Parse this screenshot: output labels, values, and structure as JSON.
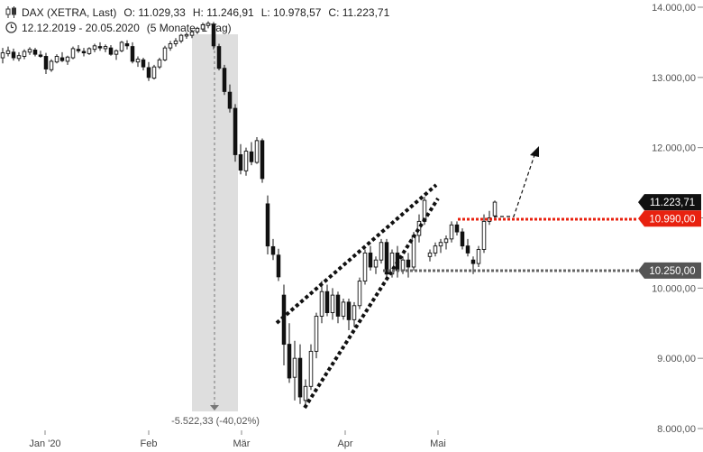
{
  "header": {
    "title": "DAX (XETRA, Last)",
    "open": "O: 11.029,33",
    "high": "H: 11.246,91",
    "low": "L: 10.978,57",
    "close": "C: 11.223,71",
    "range": "12.12.2019 - 20.05.2020",
    "period": "(5 Monate, 1 Tag)"
  },
  "chart_data": {
    "type": "candlestick",
    "y_axis_ticks": [
      "14.000,00",
      "13.000,00",
      "12.000,00",
      "11.000,00",
      "10.000,00",
      "9.000,00",
      "8.000,00"
    ],
    "x_axis_ticks": [
      "Jan '20",
      "Feb",
      "Mär",
      "Apr",
      "Mai"
    ],
    "ylim": [
      8000,
      14000
    ],
    "price_labels": [
      {
        "label": "11.223,71",
        "value": 11223.71,
        "color": "#111111"
      },
      {
        "label": "10.990,00",
        "value": 10990,
        "color": "#e8210f"
      },
      {
        "label": "10.250,00",
        "value": 10250,
        "color": "#555555"
      }
    ],
    "drawdown_annotation": "-5.522,33 (-40,02%)",
    "candles": [
      [
        13280,
        13420,
        13200,
        13350
      ],
      [
        13340,
        13440,
        13300,
        13380
      ],
      [
        13360,
        13410,
        13240,
        13280
      ],
      [
        13270,
        13360,
        13230,
        13310
      ],
      [
        13300,
        13400,
        13260,
        13370
      ],
      [
        13360,
        13430,
        13320,
        13400
      ],
      [
        13390,
        13420,
        13300,
        13330
      ],
      [
        13320,
        13380,
        13280,
        13300
      ],
      [
        13300,
        13350,
        13050,
        13120
      ],
      [
        13110,
        13260,
        13080,
        13230
      ],
      [
        13220,
        13330,
        13200,
        13300
      ],
      [
        13280,
        13360,
        13220,
        13240
      ],
      [
        13230,
        13310,
        13180,
        13290
      ],
      [
        13280,
        13440,
        13260,
        13410
      ],
      [
        13400,
        13460,
        13350,
        13380
      ],
      [
        13370,
        13420,
        13300,
        13350
      ],
      [
        13340,
        13430,
        13320,
        13410
      ],
      [
        13400,
        13480,
        13360,
        13450
      ],
      [
        13440,
        13500,
        13380,
        13420
      ],
      [
        13410,
        13470,
        13360,
        13440
      ],
      [
        13420,
        13460,
        13310,
        13330
      ],
      [
        13330,
        13400,
        13250,
        13380
      ],
      [
        13380,
        13520,
        13360,
        13500
      ],
      [
        13480,
        13530,
        13400,
        13450
      ],
      [
        13440,
        13500,
        13200,
        13230
      ],
      [
        13220,
        13300,
        13150,
        13260
      ],
      [
        13250,
        13280,
        13100,
        13150
      ],
      [
        13140,
        13220,
        12950,
        13000
      ],
      [
        12990,
        13180,
        12970,
        13150
      ],
      [
        13150,
        13280,
        13120,
        13250
      ],
      [
        13250,
        13450,
        13230,
        13420
      ],
      [
        13420,
        13520,
        13380,
        13480
      ],
      [
        13480,
        13560,
        13440,
        13520
      ],
      [
        13520,
        13620,
        13490,
        13600
      ],
      [
        13590,
        13640,
        13550,
        13610
      ],
      [
        13600,
        13680,
        13560,
        13650
      ],
      [
        13650,
        13720,
        13620,
        13700
      ],
      [
        13690,
        13780,
        13660,
        13750
      ],
      [
        13740,
        13800,
        13700,
        13770
      ],
      [
        13760,
        13790,
        13400,
        13450
      ],
      [
        13440,
        13480,
        13100,
        13130
      ],
      [
        13130,
        13180,
        12750,
        12800
      ],
      [
        12790,
        12900,
        12500,
        12560
      ],
      [
        12560,
        12620,
        11800,
        11900
      ],
      [
        11900,
        12050,
        11620,
        11680
      ],
      [
        11670,
        12000,
        11600,
        11950
      ],
      [
        11940,
        12080,
        11750,
        11800
      ],
      [
        11790,
        12150,
        11770,
        12100
      ],
      [
        12100,
        12130,
        11500,
        11560
      ],
      [
        11200,
        11320,
        10480,
        10600
      ],
      [
        10590,
        10700,
        10400,
        10480
      ],
      [
        10470,
        10560,
        10100,
        10160
      ],
      [
        9900,
        10050,
        8900,
        9200
      ],
      [
        9200,
        9500,
        8650,
        8720
      ],
      [
        8730,
        9250,
        8400,
        9000
      ],
      [
        9000,
        9200,
        8350,
        8450
      ],
      [
        8400,
        8700,
        8300,
        8600
      ],
      [
        8600,
        9200,
        8550,
        9100
      ],
      [
        9100,
        9650,
        9000,
        9600
      ],
      [
        9600,
        10100,
        9500,
        9950
      ],
      [
        9950,
        10050,
        9600,
        9650
      ],
      [
        9650,
        10000,
        9550,
        9900
      ],
      [
        9900,
        9950,
        9500,
        9600
      ],
      [
        9600,
        9850,
        9550,
        9800
      ],
      [
        9800,
        9850,
        9400,
        9550
      ],
      [
        9550,
        9800,
        9450,
        9750
      ],
      [
        9750,
        10150,
        9700,
        10100
      ],
      [
        10100,
        10550,
        10050,
        10500
      ],
      [
        10500,
        10600,
        10250,
        10300
      ],
      [
        10300,
        10450,
        10200,
        10400
      ],
      [
        10400,
        10700,
        10350,
        10650
      ],
      [
        10650,
        10700,
        10150,
        10200
      ],
      [
        10200,
        10550,
        10150,
        10500
      ],
      [
        10500,
        10600,
        10150,
        10250
      ],
      [
        10250,
        10450,
        10200,
        10400
      ],
      [
        10400,
        10500,
        10150,
        10300
      ],
      [
        10300,
        10800,
        10250,
        10750
      ],
      [
        10750,
        11050,
        10650,
        10950
      ],
      [
        10950,
        11300,
        10900,
        11250
      ],
      [
        10450,
        10550,
        10380,
        10500
      ],
      [
        10500,
        10650,
        10450,
        10600
      ],
      [
        10600,
        10700,
        10500,
        10650
      ],
      [
        10650,
        10750,
        10550,
        10700
      ],
      [
        10700,
        10950,
        10650,
        10900
      ],
      [
        10900,
        10950,
        10750,
        10800
      ],
      [
        10800,
        10850,
        10550,
        10600
      ],
      [
        10600,
        10700,
        10450,
        10500
      ],
      [
        10400,
        10450,
        10200,
        10350
      ],
      [
        10350,
        10600,
        10300,
        10550
      ],
      [
        10550,
        11050,
        10500,
        10950
      ],
      [
        10950,
        11100,
        10900,
        11000
      ],
      [
        11029,
        11247,
        10979,
        11224
      ]
    ]
  }
}
